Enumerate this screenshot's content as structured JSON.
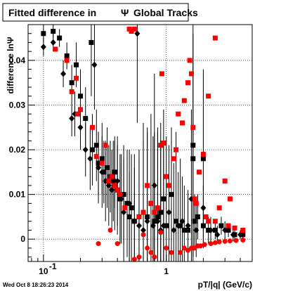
{
  "chart_data": {
    "type": "scatter",
    "title": "Fitted difference in",
    "title_symbol": "Ψ",
    "title_suffix": "Global Tracks",
    "xlabel": "pT/|q| (GeV/c)",
    "ylabel": "difference lnΨ",
    "xscale": "log",
    "xlim": [
      0.075,
      5.0
    ],
    "ylim": [
      -0.005,
      0.048
    ],
    "grid": true,
    "timestamp": "Wed Oct  8 18:26:23 2014",
    "x_tick_labels": [
      {
        "value": 0.1,
        "label": "10",
        "exp": "-1"
      },
      {
        "value": 1,
        "label": "1",
        "exp": ""
      }
    ],
    "y_ticks": [
      {
        "value": 0,
        "label": "0"
      },
      {
        "value": 0.01,
        "label": "0.01"
      },
      {
        "value": 0.02,
        "label": "0.02"
      },
      {
        "value": 0.03,
        "label": "0.03"
      },
      {
        "value": 0.04,
        "label": "0.04"
      }
    ],
    "series": [
      {
        "marker": "square",
        "color": "#000000",
        "points": [
          [
            0.1,
            0.046,
            0.002
          ],
          [
            0.12,
            0.0465,
            0.0015
          ],
          [
            0.135,
            0.045,
            0.002
          ],
          [
            0.155,
            0.041,
            0.003
          ],
          [
            0.17,
            0.035,
            0.004
          ],
          [
            0.185,
            0.039,
            0.005
          ],
          [
            0.2,
            0.032,
            0.006
          ],
          [
            0.22,
            0.027,
            0.007
          ],
          [
            0.245,
            0.044,
            0.012
          ],
          [
            0.25,
            0.02,
            0.008
          ],
          [
            0.27,
            0.021,
            0.008
          ],
          [
            0.28,
            0.017,
            0.007
          ],
          [
            0.3,
            0.018,
            0.008
          ],
          [
            0.31,
            0.015,
            0.007
          ],
          [
            0.33,
            0.016,
            0.009
          ],
          [
            0.35,
            0.014,
            0.008
          ],
          [
            0.37,
            0.013,
            0.009
          ],
          [
            0.38,
            0.015,
            0.008
          ],
          [
            0.4,
            0.011,
            0.01
          ],
          [
            0.42,
            0.009,
            0.01
          ],
          [
            0.45,
            0.01,
            0.011
          ],
          [
            0.48,
            0.008,
            0.012
          ],
          [
            0.5,
            0.005,
            0.01
          ],
          [
            0.52,
            0.007,
            0.012
          ],
          [
            0.55,
            0.004,
            0.012
          ],
          [
            0.6,
            0.005,
            0.015
          ],
          [
            0.65,
            0.006,
            0.02
          ],
          [
            0.7,
            0.005,
            0.02
          ],
          [
            0.75,
            0.008,
            0.02
          ],
          [
            0.8,
            0.004,
            0.02
          ],
          [
            0.85,
            0.005,
            0.02
          ],
          [
            0.9,
            0.006,
            0.02
          ],
          [
            0.95,
            0.009,
            0.02
          ],
          [
            1.0,
            0.003,
            0.02
          ],
          [
            1.1,
            0.01,
            0.015
          ],
          [
            1.2,
            0.004,
            0.02
          ],
          [
            1.3,
            0.003,
            0.015
          ],
          [
            1.4,
            0.002,
            0.01
          ],
          [
            1.5,
            0.002,
            0.008
          ],
          [
            1.7,
            0.004,
            0.006
          ],
          [
            1.8,
            0.005,
            0.005
          ],
          [
            2.0,
            0.003,
            0.004
          ],
          [
            2.2,
            0.002,
            0.003
          ],
          [
            2.5,
            0.002,
            0.002
          ],
          [
            2.8,
            0.003,
            0.002
          ],
          [
            3.2,
            0.002,
            0.0015
          ],
          [
            3.6,
            0.001,
            0.0015
          ],
          [
            4.2,
            0.001,
            0.001
          ],
          [
            1.65,
            0.018,
            0.03
          ],
          [
            1.65,
            0.021,
            0.025
          ],
          [
            2.0,
            0.018,
            0.02
          ]
        ]
      },
      {
        "marker": "diamond",
        "color": "#000000",
        "points": [
          [
            0.1,
            0.043,
            0.002
          ],
          [
            0.12,
            0.044,
            0.002
          ],
          [
            0.145,
            0.037,
            0.003
          ],
          [
            0.17,
            0.027,
            0.004
          ],
          [
            0.18,
            0.028,
            0.005
          ],
          [
            0.2,
            0.025,
            0.005
          ],
          [
            0.22,
            0.02,
            0.006
          ],
          [
            0.24,
            0.018,
            0.007
          ],
          [
            0.26,
            0.039,
            0.01
          ],
          [
            0.28,
            0.016,
            0.008
          ],
          [
            0.3,
            0.015,
            0.008
          ],
          [
            0.32,
            0.013,
            0.009
          ],
          [
            0.34,
            0.012,
            0.009
          ],
          [
            0.36,
            0.011,
            0.009
          ],
          [
            0.38,
            0.012,
            0.01
          ],
          [
            0.4,
            0.013,
            0.01
          ],
          [
            0.43,
            0.009,
            0.01
          ],
          [
            0.45,
            0.006,
            0.012
          ],
          [
            0.5,
            0.008,
            0.012
          ],
          [
            0.55,
            0.004,
            0.015
          ],
          [
            0.58,
            0.046,
            0.02
          ],
          [
            0.6,
            0.003,
            0.015
          ],
          [
            0.65,
            0.002,
            0.02
          ],
          [
            0.7,
            0.004,
            0.02
          ],
          [
            0.78,
            0.003,
            0.02
          ],
          [
            0.85,
            0.004,
            0.02
          ],
          [
            0.9,
            0.002,
            0.02
          ],
          [
            0.95,
            0.003,
            0.018
          ],
          [
            1.05,
            0.006,
            0.015
          ],
          [
            1.15,
            0.002,
            0.015
          ],
          [
            1.25,
            0.003,
            0.012
          ],
          [
            1.35,
            0.004,
            0.01
          ],
          [
            1.5,
            0.003,
            0.008
          ],
          [
            1.75,
            0.002,
            0.006
          ],
          [
            2.0,
            0.007,
            0.005
          ],
          [
            2.3,
            0.002,
            0.003
          ],
          [
            2.6,
            0.001,
            0.002
          ],
          [
            3.0,
            0.002,
            0.002
          ],
          [
            3.5,
            0.001,
            0.0015
          ],
          [
            4.0,
            0.001,
            0.001
          ],
          [
            0.8,
            0.012,
            0.025
          ],
          [
            1.6,
            0.009,
            0.02
          ]
        ]
      },
      {
        "marker": "square",
        "color": "#ff0000",
        "points": [
          [
            0.125,
            0.0425,
            0
          ],
          [
            0.155,
            0.04,
            0
          ],
          [
            0.17,
            0.033,
            0
          ],
          [
            0.185,
            0.036,
            0
          ],
          [
            0.19,
            0.028,
            0
          ],
          [
            0.2,
            0.029,
            0
          ],
          [
            0.25,
            0.025,
            0
          ],
          [
            0.27,
            0.0185,
            0
          ],
          [
            0.3,
            0.017,
            0
          ],
          [
            0.32,
            0.021,
            0
          ],
          [
            0.34,
            0.013,
            0
          ],
          [
            0.36,
            0.014,
            0
          ],
          [
            0.38,
            0.012,
            0
          ],
          [
            0.4,
            0.011,
            0
          ],
          [
            0.42,
            0.01,
            0
          ],
          [
            0.46,
            0.007,
            0
          ],
          [
            0.5,
            0.047,
            0
          ],
          [
            0.52,
            0.0465,
            0
          ],
          [
            0.55,
            0.047,
            0
          ],
          [
            0.6,
            0.005,
            0
          ],
          [
            0.65,
            0.006,
            0
          ],
          [
            0.7,
            0.012,
            0
          ],
          [
            0.75,
            0.008,
            0
          ],
          [
            0.8,
            0.006,
            0
          ],
          [
            0.85,
            0.007,
            0
          ],
          [
            0.9,
            0.021,
            0
          ],
          [
            0.92,
            0.037,
            0
          ],
          [
            0.95,
            0.0215,
            0
          ],
          [
            1.0,
            0.014,
            0
          ],
          [
            1.05,
            0.012,
            0
          ],
          [
            1.15,
            0.018,
            0
          ],
          [
            1.2,
            0.02,
            0
          ],
          [
            1.25,
            0.028,
            0
          ],
          [
            1.35,
            0.026,
            0
          ],
          [
            1.4,
            0.031,
            0
          ],
          [
            1.5,
            0.035,
            0
          ],
          [
            1.55,
            0.04,
            0
          ],
          [
            1.6,
            0.037,
            0
          ],
          [
            1.65,
            0.025,
            0
          ],
          [
            1.7,
            0.009,
            0
          ],
          [
            1.75,
            0.008,
            0
          ],
          [
            1.85,
            0.015,
            0
          ],
          [
            2.0,
            0.019,
            0
          ],
          [
            2.1,
            0.005,
            0
          ],
          [
            2.2,
            0.004,
            0
          ],
          [
            2.5,
            0.004,
            0
          ],
          [
            2.7,
            0.007,
            0
          ],
          [
            3.2,
            0.003,
            0
          ],
          [
            3.6,
            0.0025,
            0
          ],
          [
            4.2,
            0.002,
            0
          ],
          [
            2.5,
            0.045,
            0
          ],
          [
            2.2,
            0.032,
            0
          ],
          [
            3.0,
            0.013,
            0
          ],
          [
            3.3,
            0.009,
            0
          ]
        ]
      },
      {
        "marker": "circle",
        "color": "#ff0000",
        "points": [
          [
            0.28,
            -0.001,
            0
          ],
          [
            0.35,
            0.002,
            0
          ],
          [
            0.4,
            -0.001,
            0
          ],
          [
            0.6,
            -0.004,
            0
          ],
          [
            0.65,
            0.001,
            0
          ],
          [
            0.7,
            -0.002,
            0
          ],
          [
            0.8,
            -0.004,
            0
          ],
          [
            0.9,
            0.0015,
            0
          ],
          [
            1.0,
            -0.002,
            0
          ],
          [
            1.1,
            -0.003,
            0
          ],
          [
            1.3,
            -0.003,
            0
          ],
          [
            1.4,
            -0.002,
            0
          ],
          [
            1.5,
            -0.0025,
            0
          ],
          [
            1.6,
            -0.002,
            0
          ],
          [
            1.7,
            -0.002,
            0
          ],
          [
            1.8,
            -0.0015,
            0
          ],
          [
            1.9,
            -0.0015,
            0
          ],
          [
            2.05,
            -0.0012,
            0
          ],
          [
            2.3,
            -0.001,
            0
          ],
          [
            2.5,
            -0.0008,
            0
          ],
          [
            2.7,
            -0.0006,
            0
          ],
          [
            3.0,
            -0.0005,
            0
          ],
          [
            3.3,
            -0.0004,
            0
          ],
          [
            3.7,
            -0.0003,
            0
          ],
          [
            4.2,
            -0.0002,
            0
          ],
          [
            0.55,
            -0.0045,
            0
          ],
          [
            0.75,
            -0.003,
            0
          ]
        ]
      }
    ]
  }
}
